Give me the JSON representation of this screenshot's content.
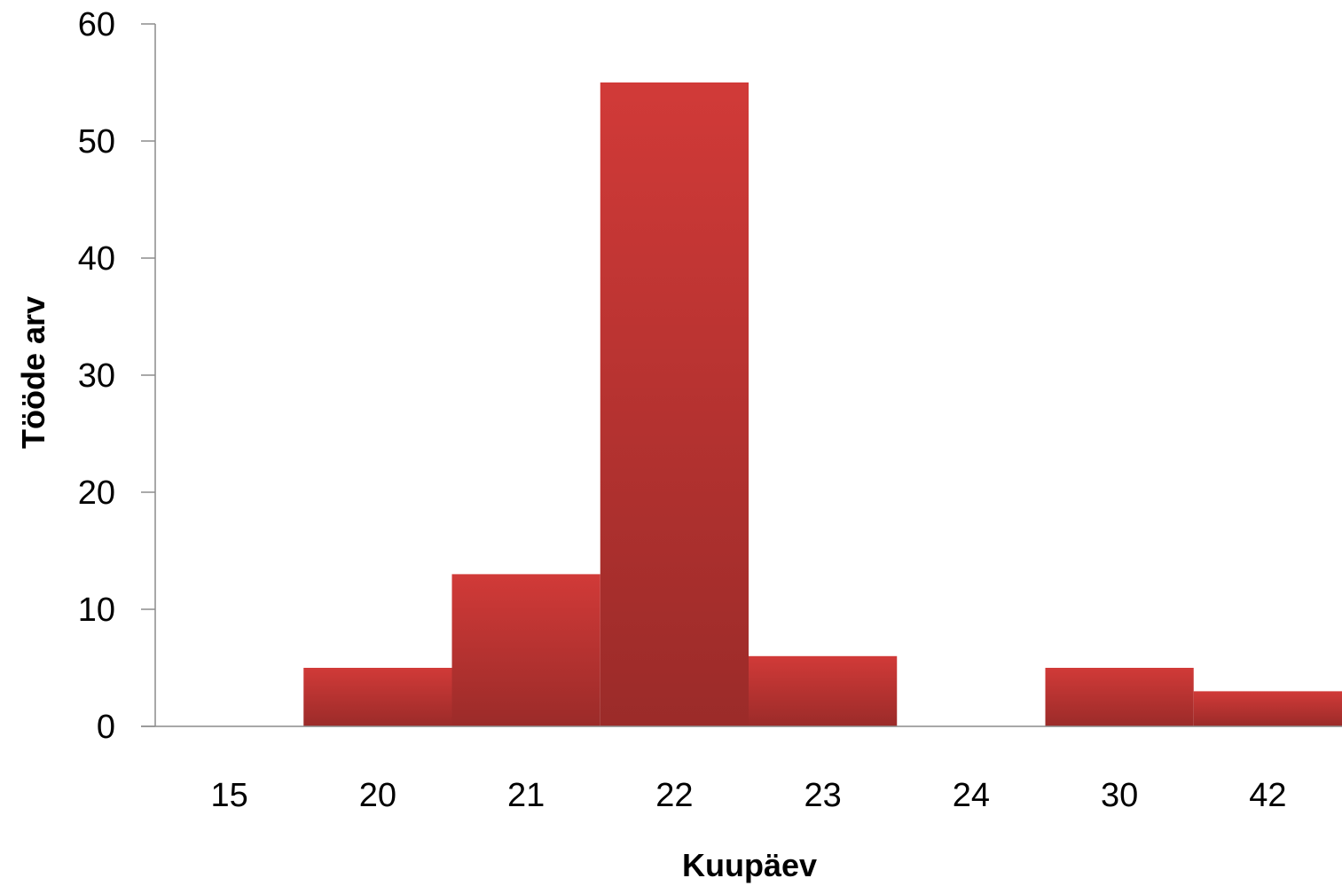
{
  "chart_data": {
    "type": "bar",
    "categories": [
      "15",
      "20",
      "21",
      "22",
      "23",
      "24",
      "30",
      "42"
    ],
    "values": [
      0,
      5,
      13,
      55,
      6,
      0,
      5,
      3
    ],
    "title": "",
    "xlabel": "Kuupäev",
    "ylabel": "Tööde arv",
    "ylim": [
      0,
      60
    ],
    "yticks": [
      0,
      10,
      20,
      30,
      40,
      50,
      60
    ],
    "grid": false,
    "legend": "none",
    "bar_gap": 0,
    "colors": {
      "bar_top": "#d13a38",
      "bar_bottom": "#9b2b29",
      "axis": "#8c8c8c"
    }
  }
}
